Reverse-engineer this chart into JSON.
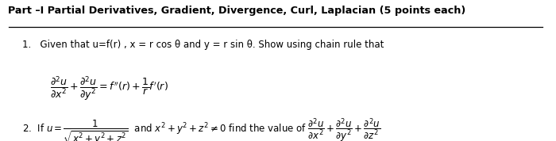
{
  "background_color": "#ffffff",
  "title": "Part –I Partial Derivatives, Gradient, Divergence, Curl, Laplacian (5 points each)",
  "q1_intro": "1.   Given that u=f(r) , x = r cos θ and y = r sin θ. Show using chain rule that",
  "q1_formula": "$\\dfrac{\\partial^2 u}{\\partial x^2} + \\dfrac{\\partial^2 u}{\\partial y^2} = f''(r)+\\dfrac{1}{r}f'(r)$",
  "q2_all": "2.  If $u = \\dfrac{1}{\\sqrt{x^2+y^2+z^2}}$  and $x^2+y^2+z^2 \\neq 0$ find the value of $\\dfrac{\\partial^2 u}{\\partial x^2}+\\dfrac{\\partial^2 u}{\\partial y^2}+\\dfrac{\\partial^2 u}{\\partial z^2}$",
  "title_fontsize": 9.2,
  "body_fontsize": 8.5,
  "formula_fontsize": 9.0,
  "fig_width": 7.0,
  "fig_height": 1.78,
  "dpi": 100
}
